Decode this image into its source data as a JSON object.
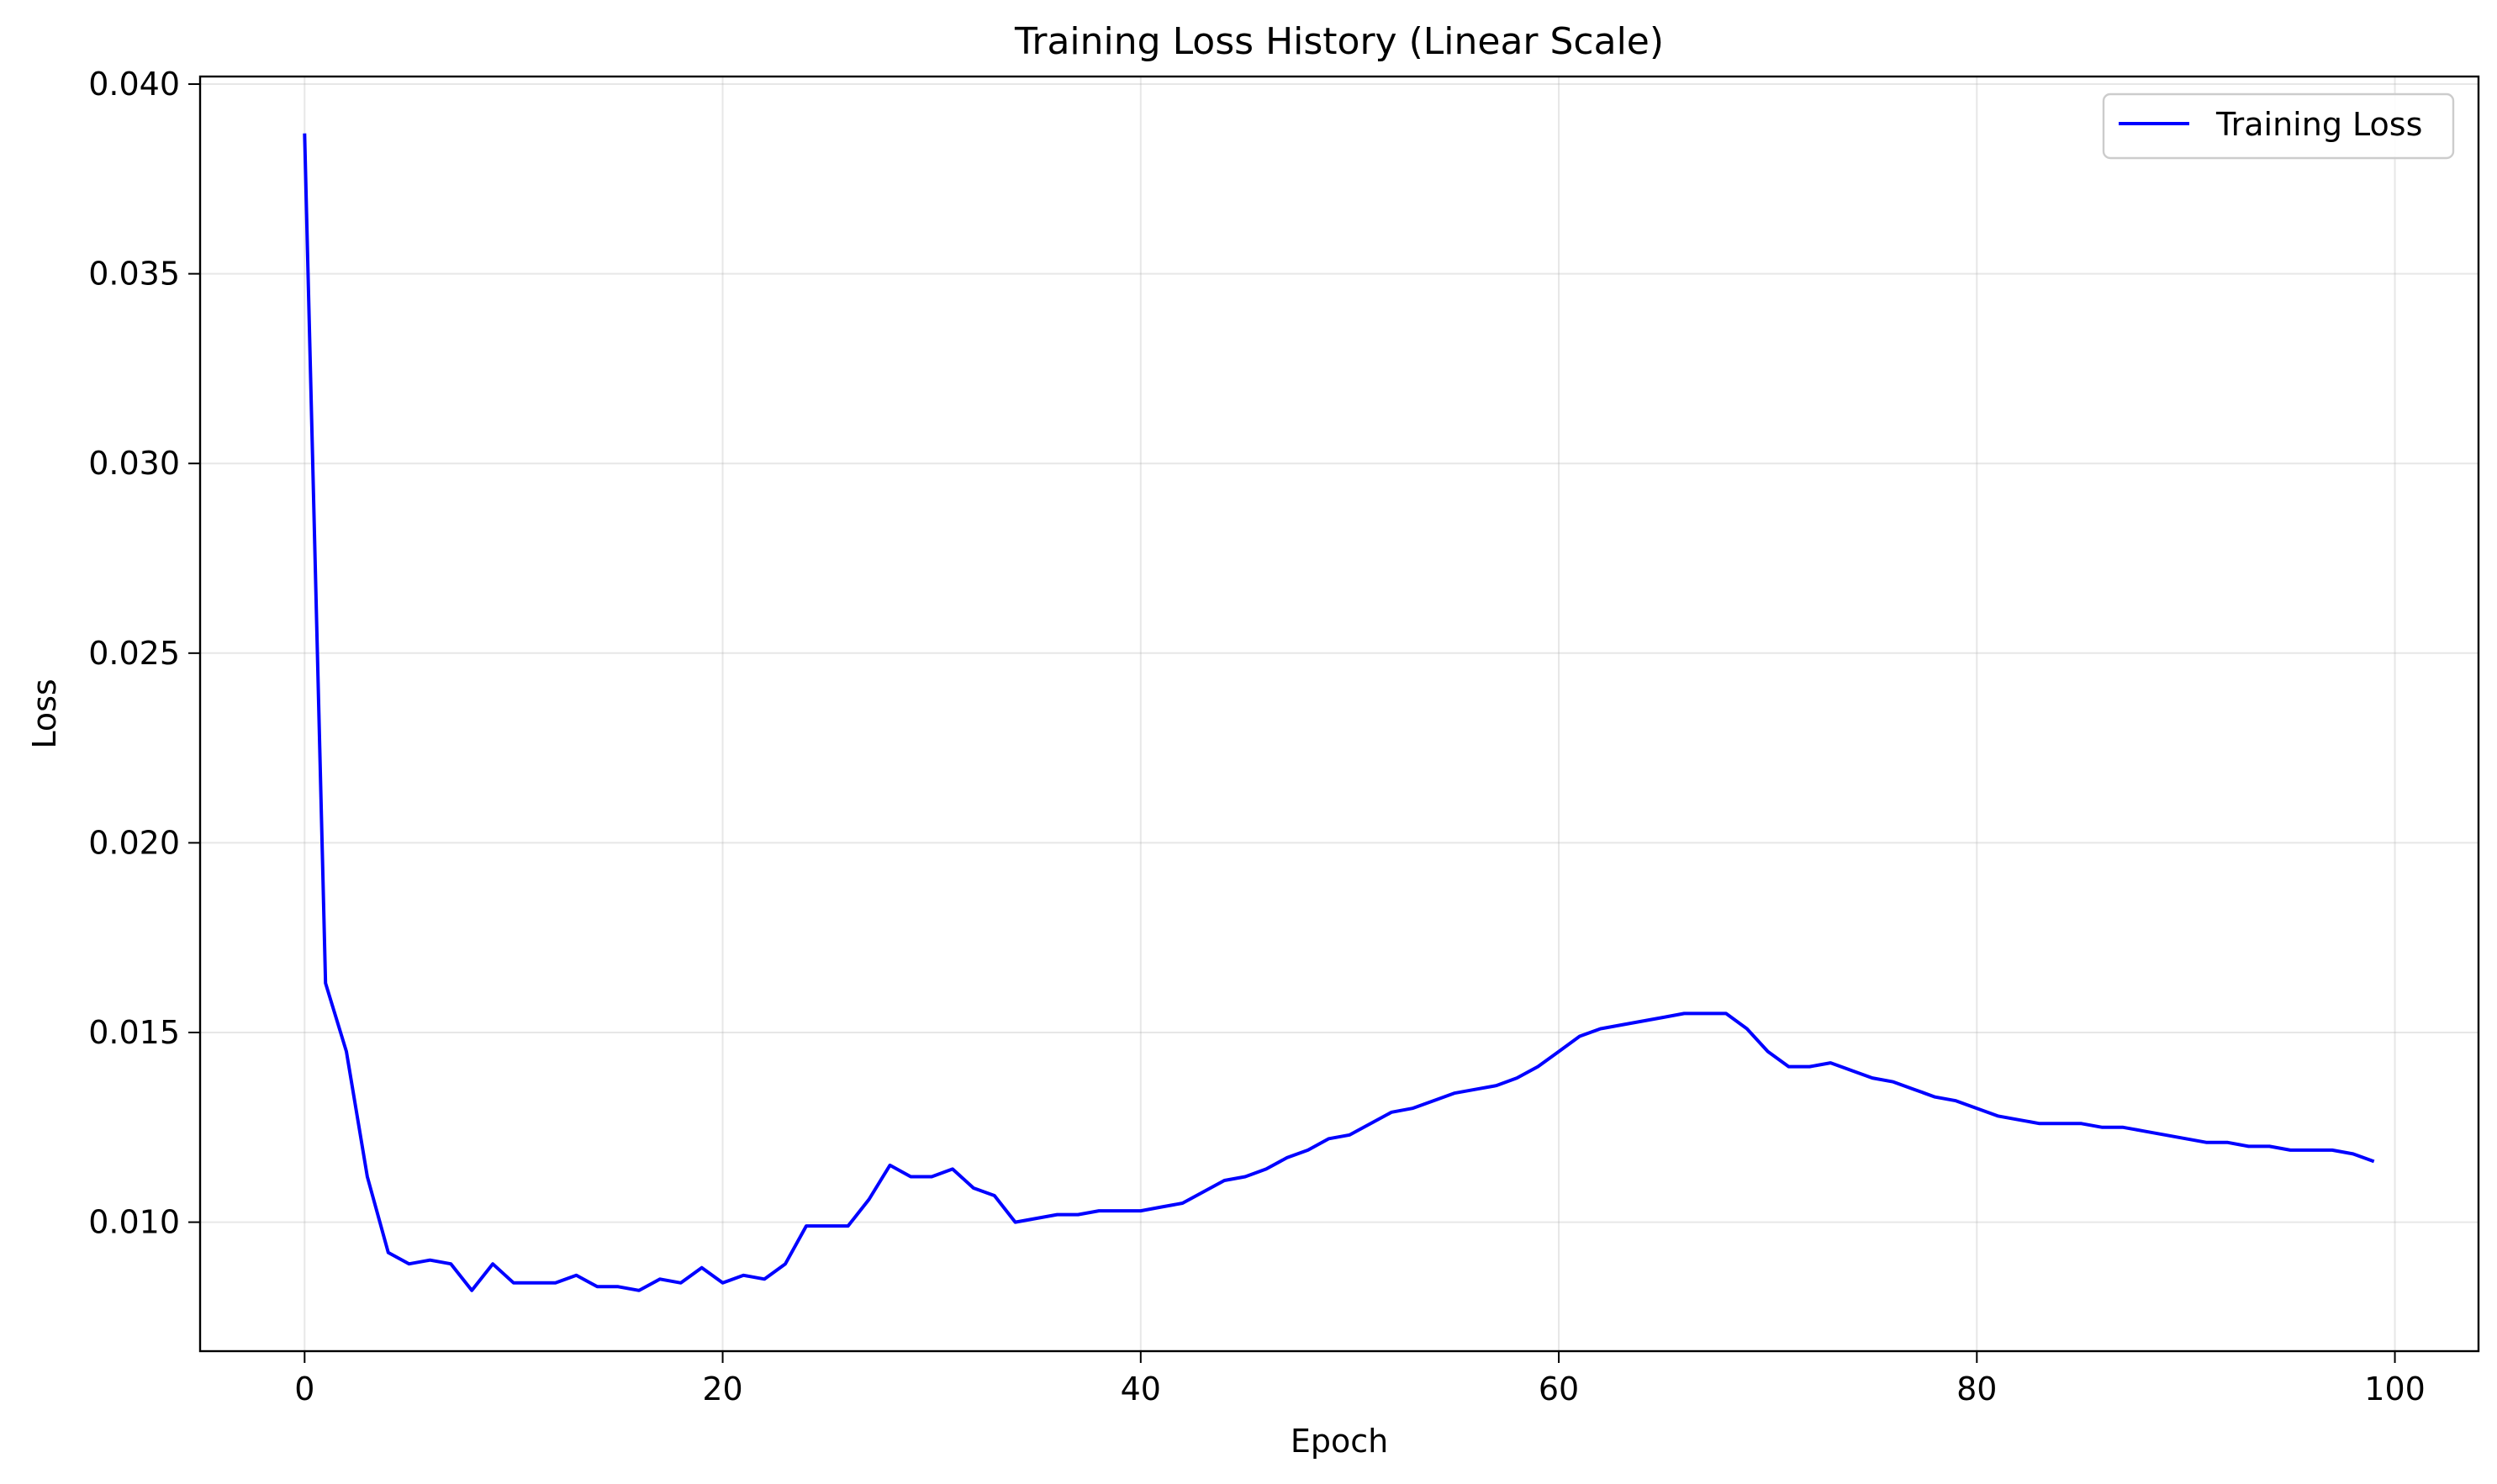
{
  "chart_data": {
    "type": "line",
    "title": "Training Loss History (Linear Scale)",
    "xlabel": "Epoch",
    "ylabel": "Loss",
    "xlim": [
      -5,
      104
    ],
    "ylim": [
      0.0066,
      0.0402
    ],
    "xticks": [
      0,
      20,
      40,
      60,
      80,
      100
    ],
    "yticks": [
      0.01,
      0.015,
      0.02,
      0.025,
      0.03,
      0.035,
      0.04
    ],
    "xtick_labels": [
      "0",
      "20",
      "40",
      "60",
      "80",
      "100"
    ],
    "ytick_labels": [
      "0.010",
      "0.015",
      "0.020",
      "0.025",
      "0.030",
      "0.035",
      "0.040"
    ],
    "grid": true,
    "legend_position": "top-right",
    "series": [
      {
        "name": "Training Loss",
        "color": "#0000ff",
        "x": [
          0,
          1,
          2,
          3,
          4,
          5,
          6,
          7,
          8,
          9,
          10,
          11,
          12,
          13,
          14,
          15,
          16,
          17,
          18,
          19,
          20,
          21,
          22,
          23,
          24,
          25,
          26,
          27,
          28,
          29,
          30,
          31,
          32,
          33,
          34,
          35,
          36,
          37,
          38,
          39,
          40,
          41,
          42,
          43,
          44,
          45,
          46,
          47,
          48,
          49,
          50,
          51,
          52,
          53,
          54,
          55,
          56,
          57,
          58,
          59,
          60,
          61,
          62,
          63,
          64,
          65,
          66,
          67,
          68,
          69,
          70,
          71,
          72,
          73,
          74,
          75,
          76,
          77,
          78,
          79,
          80,
          81,
          82,
          83,
          84,
          85,
          86,
          87,
          88,
          89,
          90,
          91,
          92,
          93,
          94,
          95,
          96,
          97,
          98,
          99
        ],
        "y": [
          0.0387,
          0.0163,
          0.0145,
          0.0112,
          0.0092,
          0.0089,
          0.009,
          0.0089,
          0.0082,
          0.0089,
          0.0084,
          0.0084,
          0.0084,
          0.0086,
          0.0083,
          0.0083,
          0.0082,
          0.0085,
          0.0084,
          0.0088,
          0.0084,
          0.0086,
          0.0085,
          0.0089,
          0.0099,
          0.0099,
          0.0099,
          0.0106,
          0.0115,
          0.0112,
          0.0112,
          0.0114,
          0.0109,
          0.0107,
          0.01,
          0.0101,
          0.0102,
          0.0102,
          0.0103,
          0.0103,
          0.0103,
          0.0104,
          0.0105,
          0.0108,
          0.0111,
          0.0112,
          0.0114,
          0.0117,
          0.0119,
          0.0122,
          0.0123,
          0.0126,
          0.0129,
          0.013,
          0.0132,
          0.0134,
          0.0135,
          0.0136,
          0.0138,
          0.0141,
          0.0145,
          0.0149,
          0.0151,
          0.0152,
          0.0153,
          0.0154,
          0.0155,
          0.0155,
          0.0155,
          0.0151,
          0.0145,
          0.0141,
          0.0141,
          0.0142,
          0.014,
          0.0138,
          0.0137,
          0.0135,
          0.0133,
          0.0132,
          0.013,
          0.0128,
          0.0127,
          0.0126,
          0.0126,
          0.0126,
          0.0125,
          0.0125,
          0.0124,
          0.0123,
          0.0122,
          0.0121,
          0.0121,
          0.012,
          0.012,
          0.0119,
          0.0119,
          0.0119,
          0.0118,
          0.0116
        ]
      }
    ]
  }
}
